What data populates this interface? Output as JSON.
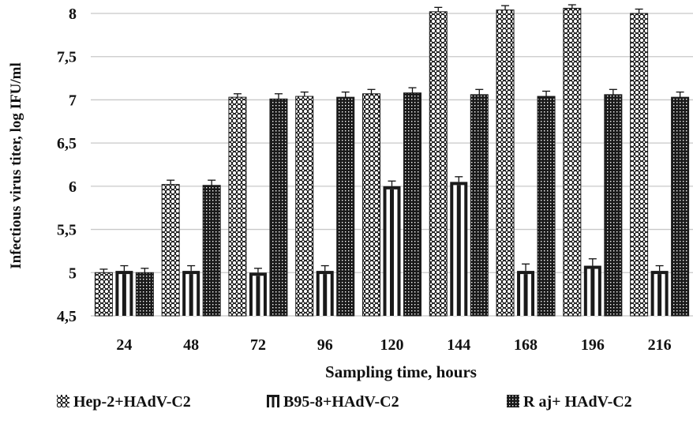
{
  "chart_data": {
    "type": "bar",
    "xlabel": "Sampling  time, hours",
    "ylabel": "Infectious  virus  titer,  log IFU/ml",
    "categories": [
      "24",
      "48",
      "72",
      "96",
      "120",
      "144",
      "168",
      "196",
      "216"
    ],
    "ylim": [
      4.5,
      8
    ],
    "yticks": [
      "4,5",
      "5",
      "5,5",
      "6",
      "6,5",
      "7",
      "7,5",
      "8"
    ],
    "grid": true,
    "legend_position": "bottom",
    "series": [
      {
        "name": "Hep-2+HAdV-C2",
        "pattern": "dots",
        "values": [
          5.0,
          6.02,
          7.03,
          7.04,
          7.07,
          8.02,
          8.04,
          8.06,
          8.0
        ],
        "errors": [
          0.04,
          0.05,
          0.04,
          0.05,
          0.05,
          0.05,
          0.05,
          0.04,
          0.05
        ]
      },
      {
        "name": "B95-8+HAdV-C2",
        "pattern": "vertical-stripes",
        "values": [
          5.02,
          5.02,
          5.0,
          5.02,
          6.0,
          6.05,
          5.02,
          5.08,
          5.02
        ],
        "errors": [
          0.06,
          0.06,
          0.05,
          0.06,
          0.06,
          0.06,
          0.08,
          0.08,
          0.06
        ]
      },
      {
        "name": "R aj+ HAdV-C2",
        "pattern": "dense-grid",
        "values": [
          5.0,
          6.01,
          7.01,
          7.03,
          7.08,
          7.06,
          7.04,
          7.06,
          7.03
        ],
        "errors": [
          0.05,
          0.06,
          0.06,
          0.06,
          0.06,
          0.06,
          0.06,
          0.06,
          0.06
        ]
      }
    ],
    "colors": {
      "grid": "#c8c8c8",
      "bar_dark": "#1a1a1a",
      "bar_light": "#ffffff",
      "text": "#111111"
    }
  }
}
